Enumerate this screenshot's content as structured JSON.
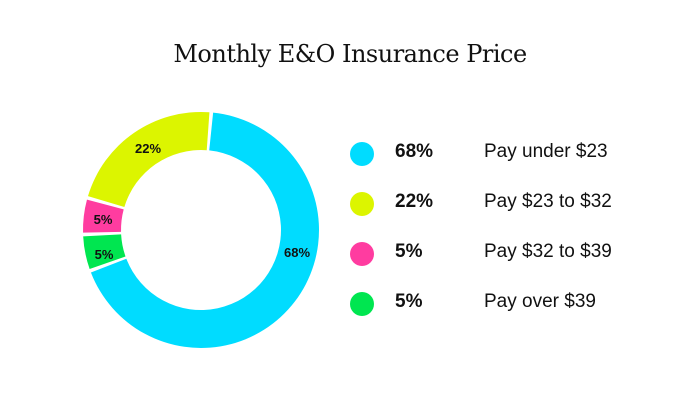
{
  "title": "Monthly E&O Insurance Price",
  "chart_data": {
    "type": "pie",
    "title": "Monthly E&O Insurance Price",
    "donut": true,
    "categories": [
      "Pay under $23",
      "Pay $23 to $32",
      "Pay $32 to $39",
      "Pay over $39"
    ],
    "values": [
      68,
      22,
      5,
      5
    ],
    "colors": [
      "#00dcff",
      "#dcf500",
      "#ff3ca0",
      "#00e650"
    ],
    "labels": [
      "68%",
      "22%",
      "5%",
      "5%"
    ],
    "legend_position": "right"
  },
  "legend": [
    {
      "pct": "68%",
      "label": "Pay under $23",
      "color": "#00dcff"
    },
    {
      "pct": "22%",
      "label": "Pay $23 to $32",
      "color": "#dcf500"
    },
    {
      "pct": "5%",
      "label": "Pay $32 to $39",
      "color": "#ff3ca0"
    },
    {
      "pct": "5%",
      "label": "Pay over $39",
      "color": "#00e650"
    }
  ]
}
